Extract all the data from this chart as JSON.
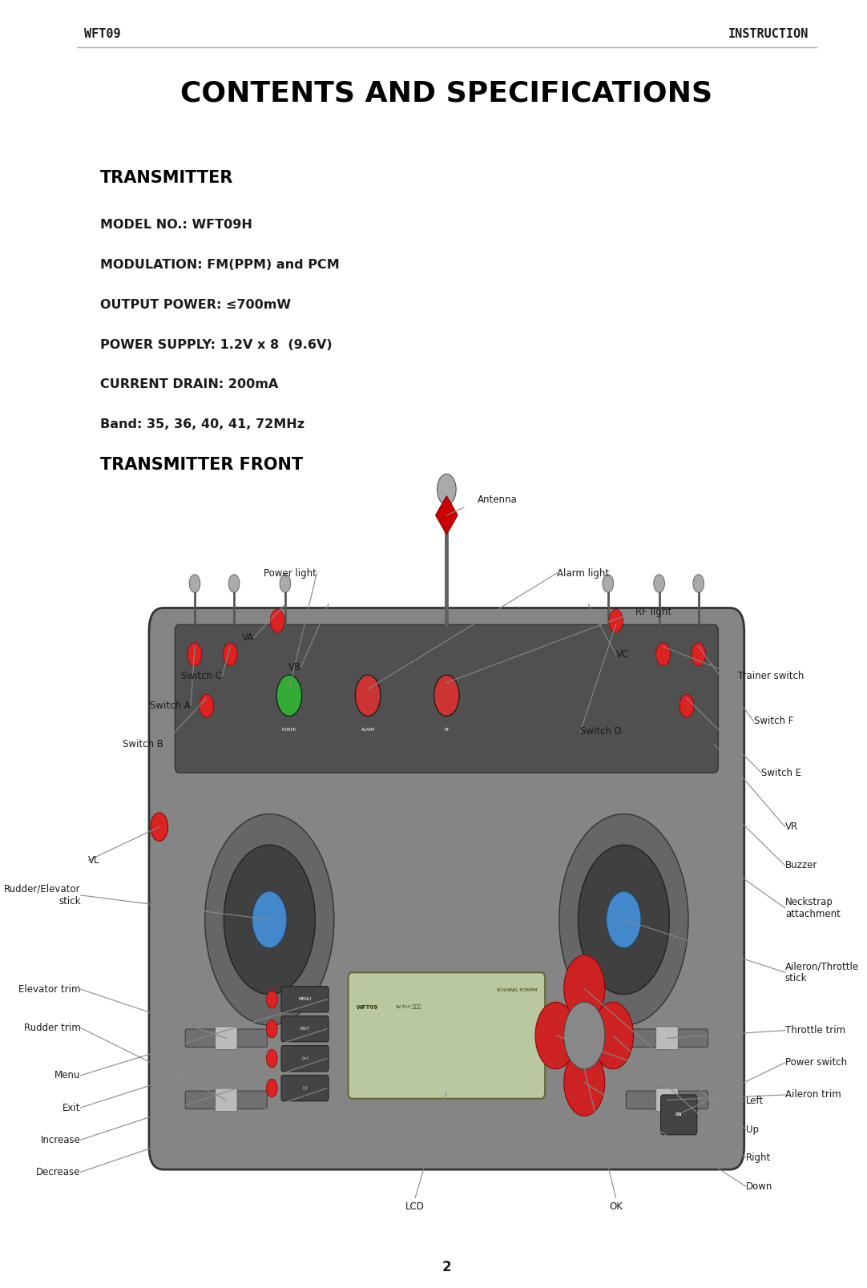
{
  "page_width": 10.82,
  "page_height": 16.07,
  "bg_color": "#ffffff",
  "header_left": "WFT09",
  "header_right": "INSTRUCTION",
  "header_font_size": 11,
  "header_color": "#1a1a1a",
  "title": "CONTENTS AND SPECIFICATIONS",
  "title_font_size": 26,
  "title_color": "#000000",
  "section1_title": "TRANSMITTER",
  "section1_lines": [
    "MODEL NO.: WFT09H",
    "MODULATION: FM(PPM) and PCM",
    "OUTPUT POWER: ≤700mW",
    "POWER SUPPLY: 1.2V x 8  (9.6V)",
    "CURRENT DRAIN: 200mA",
    "Band: 35, 36, 40, 41, 72MHz"
  ],
  "section2_title": "TRANSMITTER FRONT",
  "page_number": "2",
  "label_font_size": 8.5,
  "section_title_font_size": 15,
  "body_font_size": 11.5,
  "line_color": "#888888",
  "body_color": "#1a1a1a",
  "transmitter_color": "#858585",
  "transmitter_dark": "#505050",
  "panel_color": "#505050",
  "stick_outer": "#666666",
  "stick_inner": "#404040",
  "stick_blue": "#4488cc",
  "lcd_bg": "#b8c8a0",
  "lcd_border": "#666633",
  "indicator_green": "#33aa33",
  "indicator_red": "#cc3333",
  "switch_red": "#dd2222",
  "nav_red": "#cc2222"
}
